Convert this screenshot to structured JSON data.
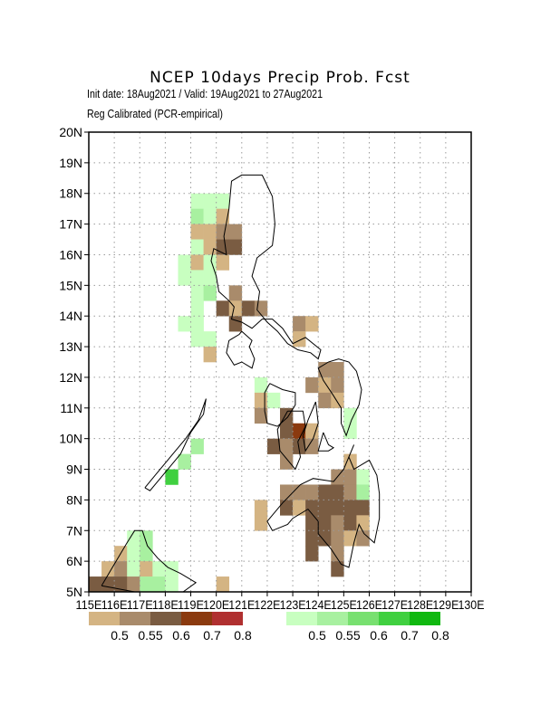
{
  "header": {
    "title": "NCEP 10days Precip Prob. Fcst",
    "subtitle_1": "Init date: 18Aug2021 / Valid: 19Aug2021 to 27Aug2021",
    "subtitle_2": "Reg Calibrated (PCR-empirical)"
  },
  "axes": {
    "lat_labels": [
      "5N",
      "6N",
      "7N",
      "8N",
      "9N",
      "10N",
      "11N",
      "12N",
      "13N",
      "14N",
      "15N",
      "16N",
      "17N",
      "18N",
      "19N",
      "20N"
    ],
    "lon_labels": [
      "115E",
      "116E",
      "117E",
      "118E",
      "119E",
      "120E",
      "121E",
      "122E",
      "123E",
      "124E",
      "125E",
      "126E",
      "127E",
      "128E",
      "129E",
      "130E"
    ],
    "lat_range": [
      5,
      20
    ],
    "lon_range": [
      115,
      130
    ]
  },
  "legend_below": {
    "labels": [
      "0.5",
      "0.55",
      "0.6",
      "0.7",
      "0.8"
    ],
    "colors": [
      "#d4b483",
      "#a98b6b",
      "#7a5c42",
      "#8b3a0f",
      "#b03030"
    ]
  },
  "legend_above": {
    "labels": [
      "0.5",
      "0.55",
      "0.6",
      "0.7",
      "0.8"
    ],
    "colors": [
      "#c8ffc0",
      "#a8f0a0",
      "#78e070",
      "#40d040",
      "#10b810"
    ]
  },
  "colors": {
    "grid": "#9a9a9a",
    "coast": "#000000"
  },
  "cells": [
    {
      "lon": 119.25,
      "lat": 17.75,
      "c": "#c8ffc0"
    },
    {
      "lon": 119.75,
      "lat": 17.75,
      "c": "#c8ffc0"
    },
    {
      "lon": 120.25,
      "lat": 17.75,
      "c": "#c8ffc0"
    },
    {
      "lon": 119.25,
      "lat": 17.25,
      "c": "#a8f0a0"
    },
    {
      "lon": 119.75,
      "lat": 17.25,
      "c": "#c8ffc0"
    },
    {
      "lon": 120.25,
      "lat": 17.25,
      "c": "#d4b483"
    },
    {
      "lon": 119.25,
      "lat": 16.75,
      "c": "#d4b483"
    },
    {
      "lon": 119.75,
      "lat": 16.75,
      "c": "#d4b483"
    },
    {
      "lon": 120.25,
      "lat": 16.75,
      "c": "#a98b6b"
    },
    {
      "lon": 120.75,
      "lat": 16.75,
      "c": "#a98b6b"
    },
    {
      "lon": 119.25,
      "lat": 16.25,
      "c": "#c8ffc0"
    },
    {
      "lon": 119.75,
      "lat": 16.25,
      "c": "#d4b483"
    },
    {
      "lon": 120.25,
      "lat": 16.25,
      "c": "#7a5c42"
    },
    {
      "lon": 120.75,
      "lat": 16.25,
      "c": "#7a5c42"
    },
    {
      "lon": 118.75,
      "lat": 15.75,
      "c": "#c8ffc0"
    },
    {
      "lon": 119.25,
      "lat": 15.75,
      "c": "#d4b483"
    },
    {
      "lon": 119.75,
      "lat": 15.75,
      "c": "#c8ffc0"
    },
    {
      "lon": 120.25,
      "lat": 15.75,
      "c": "#d4b483"
    },
    {
      "lon": 118.75,
      "lat": 15.25,
      "c": "#c8ffc0"
    },
    {
      "lon": 119.25,
      "lat": 15.25,
      "c": "#c8ffc0"
    },
    {
      "lon": 119.75,
      "lat": 15.25,
      "c": "#c8ffc0"
    },
    {
      "lon": 119.25,
      "lat": 14.75,
      "c": "#c8ffc0"
    },
    {
      "lon": 119.75,
      "lat": 14.75,
      "c": "#a8f0a0"
    },
    {
      "lon": 120.75,
      "lat": 14.75,
      "c": "#a98b6b"
    },
    {
      "lon": 119.25,
      "lat": 14.25,
      "c": "#c8ffc0"
    },
    {
      "lon": 120.25,
      "lat": 14.25,
      "c": "#7a5c42"
    },
    {
      "lon": 120.75,
      "lat": 14.25,
      "c": "#d4b483"
    },
    {
      "lon": 121.25,
      "lat": 14.25,
      "c": "#7a5c42"
    },
    {
      "lon": 121.75,
      "lat": 14.25,
      "c": "#a98b6b"
    },
    {
      "lon": 118.75,
      "lat": 13.75,
      "c": "#c8ffc0"
    },
    {
      "lon": 119.25,
      "lat": 13.75,
      "c": "#c8ffc0"
    },
    {
      "lon": 120.75,
      "lat": 13.75,
      "c": "#7a5c42"
    },
    {
      "lon": 123.25,
      "lat": 13.75,
      "c": "#a98b6b"
    },
    {
      "lon": 123.75,
      "lat": 13.75,
      "c": "#d4b483"
    },
    {
      "lon": 119.25,
      "lat": 13.25,
      "c": "#c8ffc0"
    },
    {
      "lon": 119.75,
      "lat": 13.25,
      "c": "#c8ffc0"
    },
    {
      "lon": 123.25,
      "lat": 13.25,
      "c": "#d4b483"
    },
    {
      "lon": 119.75,
      "lat": 12.75,
      "c": "#d4b483"
    },
    {
      "lon": 124.25,
      "lat": 12.25,
      "c": "#a98b6b"
    },
    {
      "lon": 124.75,
      "lat": 12.25,
      "c": "#a98b6b"
    },
    {
      "lon": 121.75,
      "lat": 11.75,
      "c": "#c8ffc0"
    },
    {
      "lon": 123.75,
      "lat": 11.75,
      "c": "#a98b6b"
    },
    {
      "lon": 124.25,
      "lat": 11.75,
      "c": "#d4b483"
    },
    {
      "lon": 124.75,
      "lat": 11.75,
      "c": "#a98b6b"
    },
    {
      "lon": 121.75,
      "lat": 11.25,
      "c": "#d4b483"
    },
    {
      "lon": 122.25,
      "lat": 11.25,
      "c": "#c8ffc0"
    },
    {
      "lon": 124.25,
      "lat": 11.25,
      "c": "#a98b6b"
    },
    {
      "lon": 124.75,
      "lat": 11.25,
      "c": "#d4b483"
    },
    {
      "lon": 121.75,
      "lat": 10.75,
      "c": "#a98b6b"
    },
    {
      "lon": 122.75,
      "lat": 10.75,
      "c": "#7a5c42"
    },
    {
      "lon": 125.25,
      "lat": 10.75,
      "c": "#c8ffc0"
    },
    {
      "lon": 122.75,
      "lat": 10.25,
      "c": "#7a5c42"
    },
    {
      "lon": 123.25,
      "lat": 10.25,
      "c": "#8b3a0f"
    },
    {
      "lon": 123.75,
      "lat": 10.25,
      "c": "#d4b483"
    },
    {
      "lon": 125.25,
      "lat": 10.25,
      "c": "#c8ffc0"
    },
    {
      "lon": 122.25,
      "lat": 9.75,
      "c": "#7a5c42"
    },
    {
      "lon": 122.75,
      "lat": 9.75,
      "c": "#a98b6b"
    },
    {
      "lon": 123.25,
      "lat": 9.75,
      "c": "#7a5c42"
    },
    {
      "lon": 123.75,
      "lat": 9.75,
      "c": "#a98b6b"
    },
    {
      "lon": 122.75,
      "lat": 9.25,
      "c": "#a98b6b"
    },
    {
      "lon": 125.25,
      "lat": 9.25,
      "c": "#d4b483"
    },
    {
      "lon": 124.75,
      "lat": 8.75,
      "c": "#a98b6b"
    },
    {
      "lon": 125.25,
      "lat": 8.75,
      "c": "#a98b6b"
    },
    {
      "lon": 125.75,
      "lat": 8.75,
      "c": "#c8ffc0"
    },
    {
      "lon": 122.75,
      "lat": 8.25,
      "c": "#a98b6b"
    },
    {
      "lon": 123.25,
      "lat": 8.25,
      "c": "#a98b6b"
    },
    {
      "lon": 123.75,
      "lat": 8.25,
      "c": "#a98b6b"
    },
    {
      "lon": 124.25,
      "lat": 8.25,
      "c": "#7a5c42"
    },
    {
      "lon": 124.75,
      "lat": 8.25,
      "c": "#7a5c42"
    },
    {
      "lon": 125.25,
      "lat": 8.25,
      "c": "#a98b6b"
    },
    {
      "lon": 125.75,
      "lat": 8.25,
      "c": "#a8f0a0"
    },
    {
      "lon": 121.75,
      "lat": 7.75,
      "c": "#d4b483"
    },
    {
      "lon": 122.75,
      "lat": 7.75,
      "c": "#7a5c42"
    },
    {
      "lon": 123.25,
      "lat": 7.75,
      "c": "#d4b483"
    },
    {
      "lon": 123.75,
      "lat": 7.75,
      "c": "#7a5c42"
    },
    {
      "lon": 124.25,
      "lat": 7.75,
      "c": "#7a5c42"
    },
    {
      "lon": 124.75,
      "lat": 7.75,
      "c": "#7a5c42"
    },
    {
      "lon": 125.25,
      "lat": 7.75,
      "c": "#7a5c42"
    },
    {
      "lon": 125.75,
      "lat": 7.75,
      "c": "#7a5c42"
    },
    {
      "lon": 121.75,
      "lat": 7.25,
      "c": "#d4b483"
    },
    {
      "lon": 123.75,
      "lat": 7.25,
      "c": "#7a5c42"
    },
    {
      "lon": 124.25,
      "lat": 7.25,
      "c": "#7a5c42"
    },
    {
      "lon": 124.75,
      "lat": 7.25,
      "c": "#a98b6b"
    },
    {
      "lon": 125.25,
      "lat": 7.25,
      "c": "#7a5c42"
    },
    {
      "lon": 125.75,
      "lat": 7.25,
      "c": "#d4b483"
    },
    {
      "lon": 123.75,
      "lat": 6.75,
      "c": "#7a5c42"
    },
    {
      "lon": 124.25,
      "lat": 6.75,
      "c": "#7a5c42"
    },
    {
      "lon": 124.75,
      "lat": 6.75,
      "c": "#a98b6b"
    },
    {
      "lon": 125.25,
      "lat": 6.75,
      "c": "#d4b483"
    },
    {
      "lon": 125.75,
      "lat": 6.75,
      "c": "#a98b6b"
    },
    {
      "lon": 123.75,
      "lat": 6.25,
      "c": "#7a5c42"
    },
    {
      "lon": 124.75,
      "lat": 6.25,
      "c": "#a98b6b"
    },
    {
      "lon": 124.75,
      "lat": 5.75,
      "c": "#7a5c42"
    },
    {
      "lon": 118.25,
      "lat": 8.75,
      "c": "#40d040"
    },
    {
      "lon": 118.75,
      "lat": 9.25,
      "c": "#a8f0a0"
    },
    {
      "lon": 119.25,
      "lat": 9.75,
      "c": "#a8f0a0"
    },
    {
      "lon": 116.75,
      "lat": 6.75,
      "c": "#c8ffc0"
    },
    {
      "lon": 117.25,
      "lat": 6.75,
      "c": "#a8f0a0"
    },
    {
      "lon": 116.25,
      "lat": 6.25,
      "c": "#d4b483"
    },
    {
      "lon": 116.75,
      "lat": 6.25,
      "c": "#c8ffc0"
    },
    {
      "lon": 117.25,
      "lat": 6.25,
      "c": "#a8f0a0"
    },
    {
      "lon": 115.75,
      "lat": 5.75,
      "c": "#d4b483"
    },
    {
      "lon": 116.25,
      "lat": 5.75,
      "c": "#a98b6b"
    },
    {
      "lon": 116.75,
      "lat": 5.75,
      "c": "#c8ffc0"
    },
    {
      "lon": 117.25,
      "lat": 5.75,
      "c": "#d4b483"
    },
    {
      "lon": 117.75,
      "lat": 5.75,
      "c": "#c8ffc0"
    },
    {
      "lon": 118.25,
      "lat": 5.75,
      "c": "#c8ffc0"
    },
    {
      "lon": 115.25,
      "lat": 5.25,
      "c": "#7a5c42"
    },
    {
      "lon": 115.75,
      "lat": 5.25,
      "c": "#7a5c42"
    },
    {
      "lon": 116.25,
      "lat": 5.25,
      "c": "#7a5c42"
    },
    {
      "lon": 116.75,
      "lat": 5.25,
      "c": "#a98b6b"
    },
    {
      "lon": 117.25,
      "lat": 5.25,
      "c": "#a8f0a0"
    },
    {
      "lon": 117.75,
      "lat": 5.25,
      "c": "#a8f0a0"
    },
    {
      "lon": 118.25,
      "lat": 5.25,
      "c": "#c8ffc0"
    },
    {
      "lon": 120.25,
      "lat": 5.25,
      "c": "#d4b483"
    }
  ],
  "coastlines": [
    [
      [
        121.8,
        18.6
      ],
      [
        121.0,
        18.6
      ],
      [
        120.6,
        18.4
      ],
      [
        120.5,
        17.5
      ],
      [
        120.3,
        16.6
      ],
      [
        120.4,
        16.0
      ],
      [
        119.9,
        16.2
      ],
      [
        119.8,
        15.8
      ],
      [
        120.0,
        15.3
      ],
      [
        120.1,
        14.8
      ],
      [
        120.5,
        14.5
      ],
      [
        120.7,
        14.3
      ],
      [
        120.6,
        13.9
      ],
      [
        121.0,
        13.8
      ],
      [
        121.4,
        13.6
      ],
      [
        121.8,
        13.9
      ],
      [
        122.2,
        13.9
      ],
      [
        122.6,
        13.6
      ],
      [
        123.0,
        13.1
      ],
      [
        123.5,
        13.3
      ],
      [
        124.1,
        12.9
      ],
      [
        124.0,
        12.6
      ],
      [
        123.7,
        12.8
      ],
      [
        123.2,
        12.9
      ],
      [
        122.8,
        13.1
      ],
      [
        122.4,
        13.5
      ],
      [
        122.0,
        13.8
      ],
      [
        121.6,
        14.2
      ],
      [
        121.7,
        14.8
      ],
      [
        121.4,
        15.3
      ],
      [
        121.6,
        15.9
      ],
      [
        122.2,
        16.3
      ],
      [
        122.3,
        17.0
      ],
      [
        122.2,
        17.9
      ],
      [
        121.8,
        18.6
      ]
    ],
    [
      [
        121.0,
        13.5
      ],
      [
        120.9,
        13.4
      ],
      [
        120.5,
        13.2
      ],
      [
        120.4,
        12.8
      ],
      [
        120.7,
        12.4
      ],
      [
        121.0,
        12.5
      ],
      [
        121.4,
        12.3
      ],
      [
        121.5,
        12.6
      ],
      [
        121.3,
        13.0
      ],
      [
        121.4,
        13.2
      ],
      [
        121.0,
        13.5
      ]
    ],
    [
      [
        124.4,
        12.5
      ],
      [
        124.0,
        12.3
      ],
      [
        124.2,
        11.9
      ],
      [
        124.6,
        11.4
      ],
      [
        124.9,
        11.0
      ],
      [
        124.9,
        10.5
      ],
      [
        125.1,
        10.1
      ],
      [
        125.3,
        10.6
      ],
      [
        125.6,
        11.1
      ],
      [
        125.7,
        11.6
      ],
      [
        125.5,
        12.2
      ],
      [
        125.2,
        12.5
      ],
      [
        124.8,
        12.6
      ],
      [
        124.4,
        12.5
      ]
    ],
    [
      [
        122.1,
        11.8
      ],
      [
        121.9,
        11.5
      ],
      [
        121.9,
        10.9
      ],
      [
        122.0,
        10.5
      ],
      [
        122.4,
        10.4
      ],
      [
        122.8,
        10.7
      ],
      [
        123.1,
        11.1
      ],
      [
        123.1,
        11.5
      ],
      [
        122.6,
        11.6
      ],
      [
        122.1,
        11.8
      ]
    ],
    [
      [
        122.8,
        10.9
      ],
      [
        122.4,
        10.3
      ],
      [
        122.5,
        9.6
      ],
      [
        123.1,
        9.0
      ],
      [
        123.3,
        9.4
      ],
      [
        123.2,
        9.9
      ],
      [
        123.5,
        10.4
      ],
      [
        123.4,
        10.9
      ],
      [
        122.8,
        10.9
      ]
    ],
    [
      [
        123.9,
        11.2
      ],
      [
        123.6,
        10.6
      ],
      [
        123.4,
        10.1
      ],
      [
        123.5,
        9.6
      ],
      [
        123.8,
        10.0
      ],
      [
        124.0,
        10.5
      ],
      [
        123.9,
        11.2
      ]
    ],
    [
      [
        124.2,
        10.2
      ],
      [
        124.4,
        9.8
      ],
      [
        124.6,
        9.7
      ],
      [
        124.4,
        9.6
      ],
      [
        124.0,
        9.6
      ],
      [
        124.2,
        10.2
      ]
    ],
    [
      [
        125.4,
        9.8
      ],
      [
        125.2,
        9.4
      ],
      [
        125.4,
        9.0
      ],
      [
        126.0,
        9.3
      ],
      [
        126.3,
        8.8
      ],
      [
        126.4,
        8.2
      ],
      [
        126.4,
        7.4
      ],
      [
        126.2,
        6.6
      ],
      [
        125.8,
        6.9
      ],
      [
        125.6,
        7.2
      ],
      [
        125.4,
        6.6
      ],
      [
        125.2,
        5.8
      ],
      [
        124.9,
        5.9
      ],
      [
        124.5,
        6.4
      ],
      [
        124.0,
        6.9
      ],
      [
        124.0,
        7.3
      ],
      [
        123.6,
        7.7
      ],
      [
        123.0,
        7.4
      ],
      [
        122.8,
        7.2
      ],
      [
        122.2,
        7.0
      ],
      [
        122.0,
        7.3
      ],
      [
        122.6,
        7.9
      ],
      [
        123.3,
        8.5
      ],
      [
        123.8,
        8.7
      ],
      [
        124.6,
        8.6
      ],
      [
        125.0,
        9.0
      ],
      [
        125.4,
        9.8
      ]
    ],
    [
      [
        117.2,
        8.4
      ],
      [
        117.6,
        8.8
      ],
      [
        118.3,
        9.5
      ],
      [
        118.8,
        10.0
      ],
      [
        119.3,
        10.6
      ],
      [
        119.6,
        11.3
      ],
      [
        119.5,
        10.8
      ],
      [
        119.0,
        10.2
      ],
      [
        118.6,
        9.5
      ],
      [
        118.0,
        8.9
      ],
      [
        117.4,
        8.3
      ],
      [
        117.2,
        8.4
      ]
    ],
    [
      [
        115.5,
        5.2
      ],
      [
        116.0,
        5.9
      ],
      [
        116.5,
        6.6
      ],
      [
        116.8,
        7.0
      ],
      [
        117.1,
        7.0
      ],
      [
        117.3,
        6.5
      ],
      [
        117.7,
        6.1
      ],
      [
        118.1,
        5.8
      ],
      [
        118.6,
        5.6
      ],
      [
        119.2,
        5.3
      ],
      [
        118.7,
        5.0
      ],
      [
        118.1,
        5.0
      ],
      [
        117.6,
        5.0
      ],
      [
        116.8,
        5.0
      ],
      [
        115.5,
        5.2
      ]
    ]
  ]
}
